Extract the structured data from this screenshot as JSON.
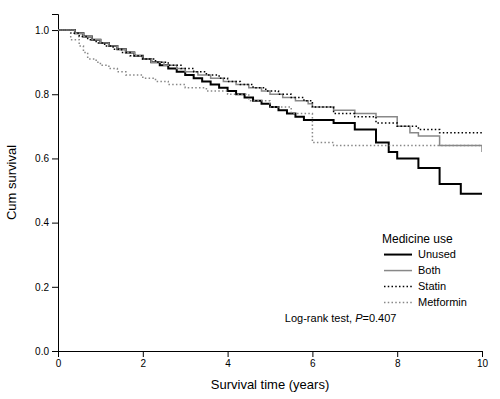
{
  "chart_data": {
    "type": "step",
    "xlabel": "Survival time (years)",
    "ylabel": "Cum survival",
    "xlim": [
      0,
      10
    ],
    "ylim": [
      0.0,
      1.05
    ],
    "xticks": [
      0,
      2,
      4,
      6,
      8,
      10
    ],
    "yticks": [
      {
        "value": 0.0,
        "label": "0.0"
      },
      0.2,
      0.4,
      0.6,
      0.8,
      {
        "value": 1.0,
        "label": "1.0"
      }
    ],
    "grid": false,
    "legend": "lower right",
    "legend_title": "Medicine use",
    "annotation": [
      "Log-rank test, ",
      "P",
      "=0.407"
    ],
    "series": [
      {
        "name": "Unused",
        "color": "#000000",
        "line_style": "solid",
        "x": [
          0,
          0.4,
          0.6,
          0.8,
          1.0,
          1.2,
          1.4,
          1.6,
          1.8,
          2.0,
          2.2,
          2.4,
          2.6,
          2.8,
          3.0,
          3.2,
          3.4,
          3.6,
          3.8,
          4.0,
          4.2,
          4.4,
          4.6,
          4.8,
          5.0,
          5.2,
          5.4,
          5.6,
          5.8,
          6.0,
          6.5,
          7.0,
          7.5,
          7.8,
          8.0,
          8.5,
          9.0,
          9.5,
          10.0
        ],
        "values": [
          1.0,
          0.99,
          0.98,
          0.97,
          0.96,
          0.95,
          0.94,
          0.93,
          0.92,
          0.91,
          0.9,
          0.89,
          0.88,
          0.87,
          0.86,
          0.85,
          0.84,
          0.83,
          0.82,
          0.81,
          0.8,
          0.79,
          0.78,
          0.77,
          0.76,
          0.75,
          0.74,
          0.73,
          0.72,
          0.72,
          0.71,
          0.69,
          0.65,
          0.62,
          0.6,
          0.57,
          0.52,
          0.49,
          0.49
        ]
      },
      {
        "name": "Both",
        "color": "#888888",
        "line_style": "solid",
        "x": [
          0,
          0.4,
          0.6,
          0.8,
          1.0,
          1.2,
          1.4,
          1.6,
          1.8,
          2.0,
          2.2,
          2.5,
          2.8,
          3.0,
          3.3,
          3.6,
          3.9,
          4.2,
          4.5,
          4.8,
          5.0,
          5.3,
          5.6,
          5.9,
          6.0,
          6.5,
          7.0,
          7.5,
          8.0,
          8.3,
          8.5,
          9.0,
          10.0
        ],
        "values": [
          1.0,
          0.99,
          0.98,
          0.97,
          0.96,
          0.95,
          0.94,
          0.93,
          0.92,
          0.91,
          0.9,
          0.89,
          0.88,
          0.87,
          0.86,
          0.85,
          0.84,
          0.83,
          0.82,
          0.81,
          0.8,
          0.79,
          0.78,
          0.77,
          0.76,
          0.75,
          0.74,
          0.73,
          0.7,
          0.68,
          0.67,
          0.64,
          0.62
        ]
      },
      {
        "name": "Statin",
        "color": "#000000",
        "line_style": "dotted",
        "x": [
          0,
          0.3,
          0.5,
          0.7,
          0.9,
          1.1,
          1.3,
          1.5,
          1.7,
          2.0,
          2.3,
          2.6,
          2.9,
          3.2,
          3.5,
          3.8,
          4.0,
          4.3,
          4.6,
          4.9,
          5.2,
          5.5,
          5.8,
          6.0,
          6.5,
          7.0,
          7.5,
          8.0,
          8.5,
          9.0,
          10.0
        ],
        "values": [
          1.0,
          0.99,
          0.98,
          0.97,
          0.96,
          0.95,
          0.94,
          0.93,
          0.92,
          0.91,
          0.9,
          0.89,
          0.88,
          0.87,
          0.86,
          0.85,
          0.84,
          0.83,
          0.82,
          0.81,
          0.8,
          0.79,
          0.78,
          0.76,
          0.74,
          0.73,
          0.71,
          0.7,
          0.69,
          0.68,
          0.68
        ]
      },
      {
        "name": "Metformin",
        "color": "#888888",
        "line_style": "dotted",
        "x": [
          0,
          0.3,
          0.5,
          0.6,
          0.7,
          0.9,
          1.0,
          1.2,
          1.4,
          1.6,
          1.8,
          2.0,
          2.3,
          2.6,
          3.0,
          3.5,
          4.0,
          4.5,
          5.0,
          5.5,
          6.0,
          6.5,
          7.0,
          7.5,
          8.0,
          8.5,
          9.0,
          10.0
        ],
        "values": [
          1.0,
          0.97,
          0.95,
          0.93,
          0.91,
          0.9,
          0.89,
          0.88,
          0.87,
          0.86,
          0.86,
          0.85,
          0.84,
          0.83,
          0.82,
          0.81,
          0.8,
          0.78,
          0.76,
          0.74,
          0.65,
          0.64,
          0.64,
          0.64,
          0.64,
          0.64,
          0.64,
          0.64
        ]
      }
    ]
  }
}
